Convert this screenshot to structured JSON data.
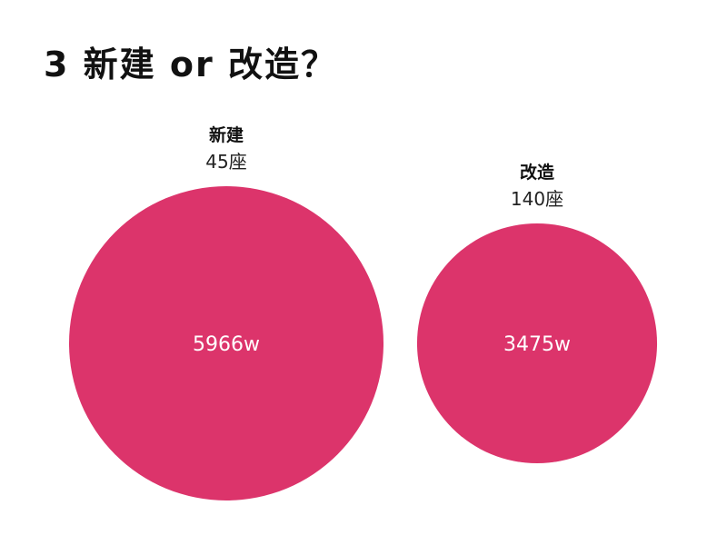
{
  "title": "3 新建 or 改造？",
  "colors": {
    "background": "#ffffff",
    "bubble": "#dc346b",
    "value_text": "#ffffff",
    "label_text": "#111111"
  },
  "chart_data": {
    "type": "bubble",
    "title": "3 新建 or 改造？",
    "size_encoding": "area",
    "items": [
      {
        "name": "新建",
        "count_label": "45座",
        "count": 45,
        "value": 5966,
        "value_label": "5966w"
      },
      {
        "name": "改造",
        "count_label": "140座",
        "count": 140,
        "value": 3475,
        "value_label": "3475w"
      }
    ]
  }
}
